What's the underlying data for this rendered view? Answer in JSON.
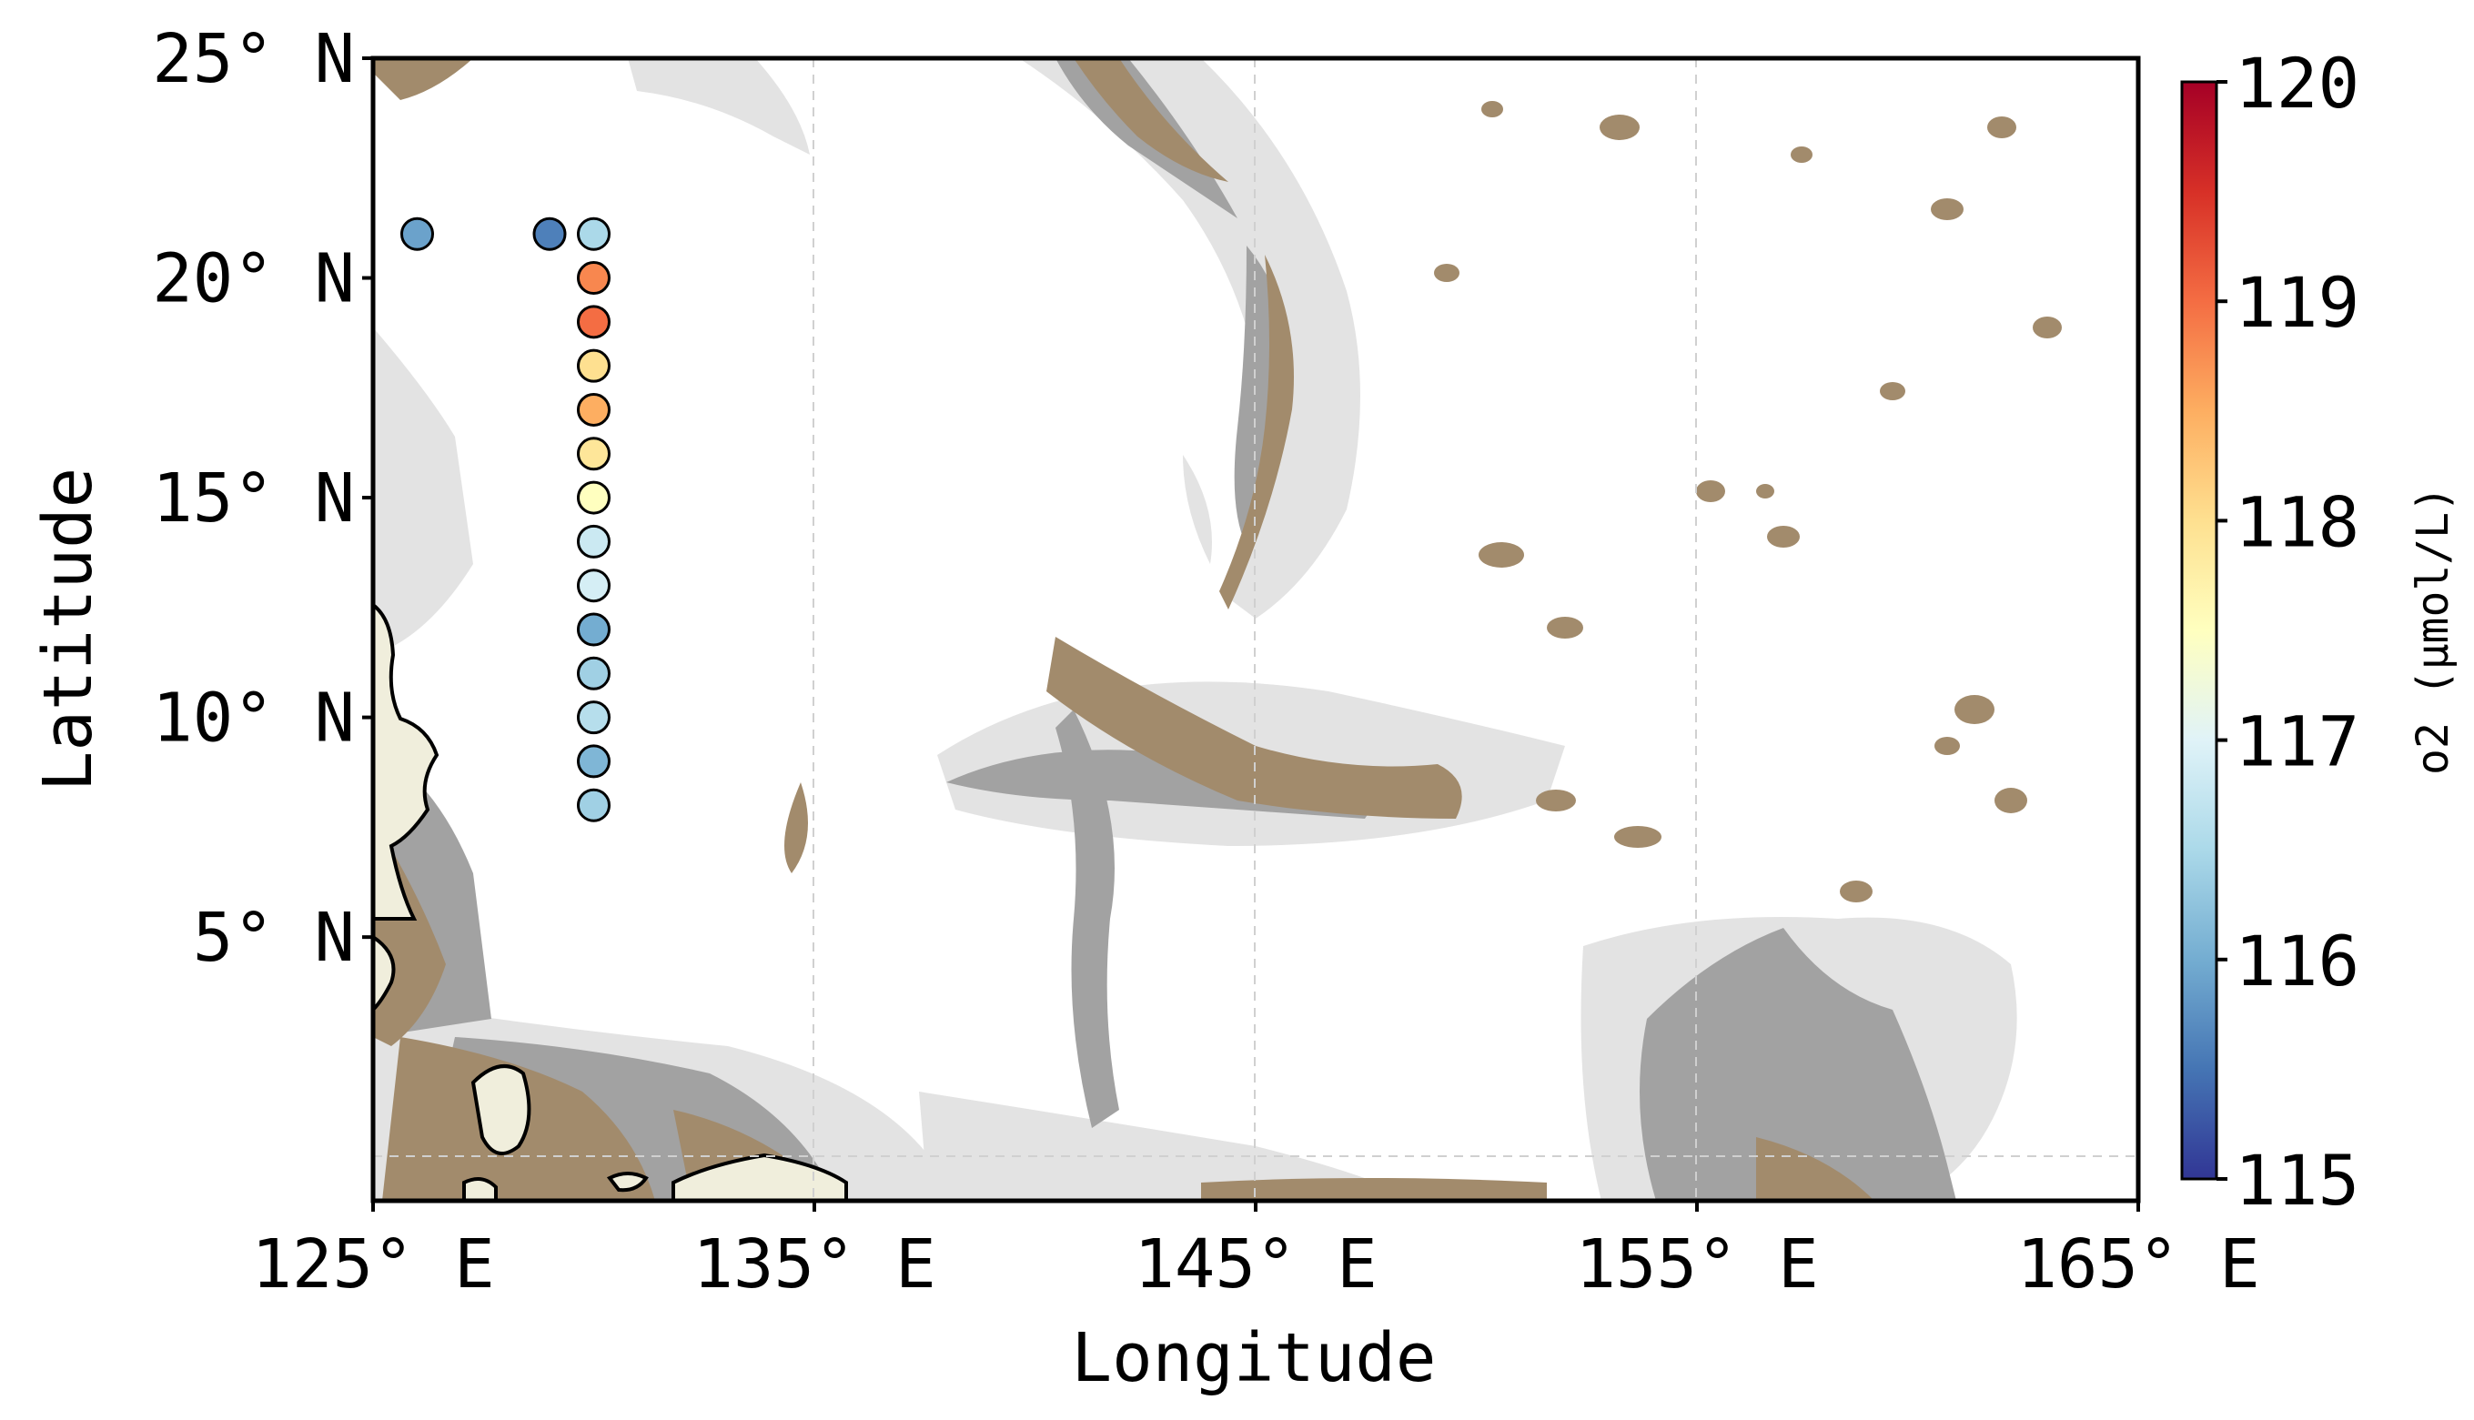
{
  "map": {
    "xlabel": "Longitude",
    "ylabel": "Latitude",
    "lon_range": [
      125,
      165
    ],
    "lat_range": [
      -1,
      25
    ],
    "x_ticks": [
      {
        "value": 125,
        "label": "125° E"
      },
      {
        "value": 135,
        "label": "135° E"
      },
      {
        "value": 145,
        "label": "145° E"
      },
      {
        "value": 155,
        "label": "155° E"
      },
      {
        "value": 165,
        "label": "165° E"
      }
    ],
    "y_ticks": [
      {
        "value": 25,
        "label": "25° N"
      },
      {
        "value": 20,
        "label": "20° N"
      },
      {
        "value": 15,
        "label": "15° N"
      },
      {
        "value": 10,
        "label": "10° N"
      },
      {
        "value": 5,
        "label": "5° N"
      }
    ],
    "background_colors": {
      "deep_ocean": "#ffffff",
      "mid_depth": "#e3e3e3",
      "shallow": "#a2a2a2",
      "seamount": "#a28b6c",
      "land": "#f0eedc"
    }
  },
  "colorbar": {
    "label": "o2  (μmol/L)",
    "min": 115,
    "max": 120,
    "ticks": [
      {
        "value": 120,
        "label": "120"
      },
      {
        "value": 119,
        "label": "119"
      },
      {
        "value": 118,
        "label": "118"
      },
      {
        "value": 117,
        "label": "117"
      },
      {
        "value": 116,
        "label": "116"
      },
      {
        "value": 115,
        "label": "115"
      }
    ],
    "colormap": [
      "#313695",
      "#4575b4",
      "#74add1",
      "#abd9e9",
      "#e0f3f8",
      "#ffffbf",
      "#fee090",
      "#fdae61",
      "#f46d43",
      "#d73027",
      "#a50026"
    ]
  },
  "chart_data": {
    "type": "scatter",
    "xlabel": "Longitude",
    "ylabel": "Latitude",
    "xlim": [
      125,
      165
    ],
    "ylim": [
      -1,
      25
    ],
    "color_variable": "o2",
    "color_unit": "μmol/L",
    "color_range": [
      115,
      120
    ],
    "points": [
      {
        "lon": 126.0,
        "lat": 21.0,
        "o2": 115.9
      },
      {
        "lon": 129.0,
        "lat": 21.0,
        "o2": 115.6
      },
      {
        "lon": 130.0,
        "lat": 21.0,
        "o2": 116.5
      },
      {
        "lon": 130.0,
        "lat": 20.0,
        "o2": 118.8
      },
      {
        "lon": 130.0,
        "lat": 19.0,
        "o2": 119.0
      },
      {
        "lon": 130.0,
        "lat": 18.0,
        "o2": 118.0
      },
      {
        "lon": 130.0,
        "lat": 17.0,
        "o2": 118.5
      },
      {
        "lon": 130.0,
        "lat": 16.0,
        "o2": 117.9
      },
      {
        "lon": 130.0,
        "lat": 15.0,
        "o2": 117.5
      },
      {
        "lon": 130.0,
        "lat": 14.0,
        "o2": 116.8
      },
      {
        "lon": 130.0,
        "lat": 13.0,
        "o2": 116.9
      },
      {
        "lon": 130.0,
        "lat": 12.0,
        "o2": 116.0
      },
      {
        "lon": 130.0,
        "lat": 11.0,
        "o2": 116.4
      },
      {
        "lon": 130.0,
        "lat": 10.0,
        "o2": 116.6
      },
      {
        "lon": 130.0,
        "lat": 9.0,
        "o2": 116.1
      },
      {
        "lon": 130.0,
        "lat": 8.0,
        "o2": 116.4
      }
    ]
  }
}
